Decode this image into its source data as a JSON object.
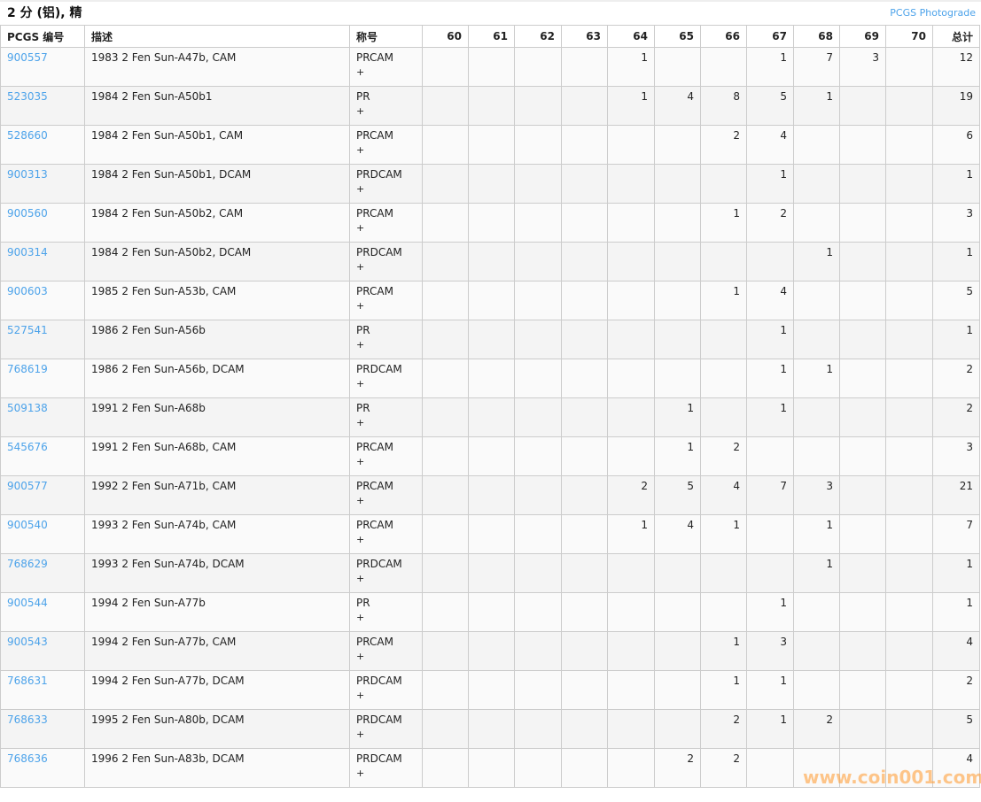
{
  "title": "2 分 (铝), 精",
  "photograde_link": "PCGS Photograde",
  "watermark": "www.coin001.com",
  "colors": {
    "link": "#4da3ea",
    "watermark": "#ffa03c"
  },
  "columns": [
    "PCGS 编号",
    "描述",
    "称号",
    "60",
    "61",
    "62",
    "63",
    "64",
    "65",
    "66",
    "67",
    "68",
    "69",
    "70",
    "总计"
  ],
  "rows": [
    {
      "code": "900557",
      "desc": "1983 2 Fen Sun-A47b, CAM",
      "designation": "PRCAM",
      "plus": "+",
      "grades": [
        "",
        "",
        "",
        "",
        "1",
        "",
        "",
        "1",
        "7",
        "3",
        ""
      ],
      "total": "12"
    },
    {
      "code": "523035",
      "desc": "1984 2 Fen Sun-A50b1",
      "designation": "PR",
      "plus": "+",
      "grades": [
        "",
        "",
        "",
        "",
        "1",
        "4",
        "8",
        "5",
        "1",
        "",
        ""
      ],
      "total": "19"
    },
    {
      "code": "528660",
      "desc": "1984 2 Fen Sun-A50b1, CAM",
      "designation": "PRCAM",
      "plus": "+",
      "grades": [
        "",
        "",
        "",
        "",
        "",
        "",
        "2",
        "4",
        "",
        "",
        ""
      ],
      "total": "6"
    },
    {
      "code": "900313",
      "desc": "1984 2 Fen Sun-A50b1, DCAM",
      "designation": "PRDCAM",
      "plus": "+",
      "grades": [
        "",
        "",
        "",
        "",
        "",
        "",
        "",
        "1",
        "",
        "",
        ""
      ],
      "total": "1"
    },
    {
      "code": "900560",
      "desc": "1984 2 Fen Sun-A50b2, CAM",
      "designation": "PRCAM",
      "plus": "+",
      "grades": [
        "",
        "",
        "",
        "",
        "",
        "",
        "1",
        "2",
        "",
        "",
        ""
      ],
      "total": "3"
    },
    {
      "code": "900314",
      "desc": "1984 2 Fen Sun-A50b2, DCAM",
      "designation": "PRDCAM",
      "plus": "+",
      "grades": [
        "",
        "",
        "",
        "",
        "",
        "",
        "",
        "",
        "1",
        "",
        ""
      ],
      "total": "1"
    },
    {
      "code": "900603",
      "desc": "1985 2 Fen Sun-A53b, CAM",
      "designation": "PRCAM",
      "plus": "+",
      "grades": [
        "",
        "",
        "",
        "",
        "",
        "",
        "1",
        "4",
        "",
        "",
        ""
      ],
      "total": "5"
    },
    {
      "code": "527541",
      "desc": "1986 2 Fen Sun-A56b",
      "designation": "PR",
      "plus": "+",
      "grades": [
        "",
        "",
        "",
        "",
        "",
        "",
        "",
        "1",
        "",
        "",
        ""
      ],
      "total": "1"
    },
    {
      "code": "768619",
      "desc": "1986 2 Fen Sun-A56b, DCAM",
      "designation": "PRDCAM",
      "plus": "+",
      "grades": [
        "",
        "",
        "",
        "",
        "",
        "",
        "",
        "1",
        "1",
        "",
        ""
      ],
      "total": "2"
    },
    {
      "code": "509138",
      "desc": "1991 2 Fen Sun-A68b",
      "designation": "PR",
      "plus": "+",
      "grades": [
        "",
        "",
        "",
        "",
        "",
        "1",
        "",
        "1",
        "",
        "",
        ""
      ],
      "total": "2"
    },
    {
      "code": "545676",
      "desc": "1991 2 Fen Sun-A68b, CAM",
      "designation": "PRCAM",
      "plus": "+",
      "grades": [
        "",
        "",
        "",
        "",
        "",
        "1",
        "2",
        "",
        "",
        "",
        ""
      ],
      "total": "3"
    },
    {
      "code": "900577",
      "desc": "1992 2 Fen Sun-A71b, CAM",
      "designation": "PRCAM",
      "plus": "+",
      "grades": [
        "",
        "",
        "",
        "",
        "2",
        "5",
        "4",
        "7",
        "3",
        "",
        ""
      ],
      "total": "21"
    },
    {
      "code": "900540",
      "desc": "1993 2 Fen Sun-A74b, CAM",
      "designation": "PRCAM",
      "plus": "+",
      "grades": [
        "",
        "",
        "",
        "",
        "1",
        "4",
        "1",
        "",
        "1",
        "",
        ""
      ],
      "total": "7"
    },
    {
      "code": "768629",
      "desc": "1993 2 Fen Sun-A74b, DCAM",
      "designation": "PRDCAM",
      "plus": "+",
      "grades": [
        "",
        "",
        "",
        "",
        "",
        "",
        "",
        "",
        "1",
        "",
        ""
      ],
      "total": "1"
    },
    {
      "code": "900544",
      "desc": "1994 2 Fen Sun-A77b",
      "designation": "PR",
      "plus": "+",
      "grades": [
        "",
        "",
        "",
        "",
        "",
        "",
        "",
        "1",
        "",
        "",
        ""
      ],
      "total": "1"
    },
    {
      "code": "900543",
      "desc": "1994 2 Fen Sun-A77b, CAM",
      "designation": "PRCAM",
      "plus": "+",
      "grades": [
        "",
        "",
        "",
        "",
        "",
        "",
        "1",
        "3",
        "",
        "",
        ""
      ],
      "total": "4"
    },
    {
      "code": "768631",
      "desc": "1994 2 Fen Sun-A77b, DCAM",
      "designation": "PRDCAM",
      "plus": "+",
      "grades": [
        "",
        "",
        "",
        "",
        "",
        "",
        "1",
        "1",
        "",
        "",
        ""
      ],
      "total": "2"
    },
    {
      "code": "768633",
      "desc": "1995 2 Fen Sun-A80b, DCAM",
      "designation": "PRDCAM",
      "plus": "+",
      "grades": [
        "",
        "",
        "",
        "",
        "",
        "",
        "2",
        "1",
        "2",
        "",
        ""
      ],
      "total": "5"
    },
    {
      "code": "768636",
      "desc": "1996 2 Fen Sun-A83b, DCAM",
      "designation": "PRDCAM",
      "plus": "+",
      "grades": [
        "",
        "",
        "",
        "",
        "",
        "2",
        "2",
        "",
        "",
        "",
        ""
      ],
      "total": "4"
    }
  ]
}
